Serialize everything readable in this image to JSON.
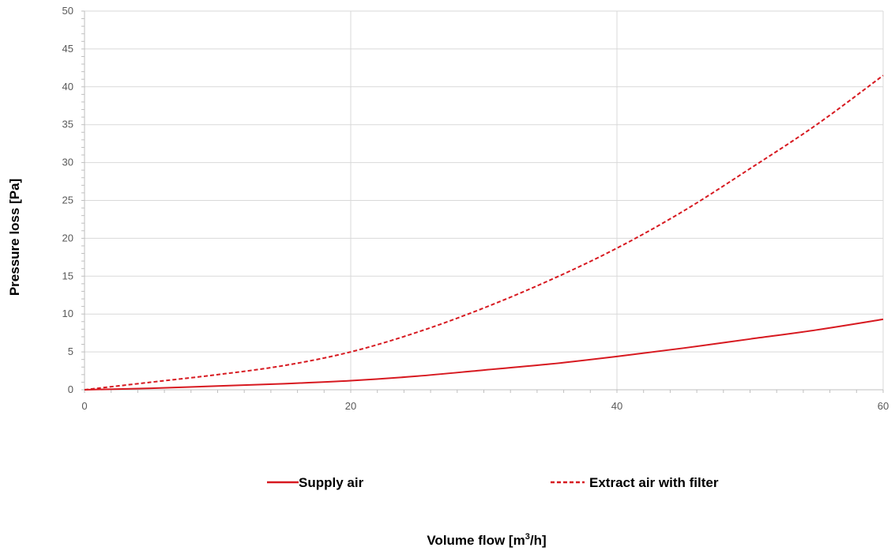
{
  "chart_data": {
    "type": "line",
    "title": "",
    "xlabel": "Volume flow [m",
    "xlabel_sup": "3",
    "xlabel_suffix": "/h]",
    "ylabel": "Pressure loss [Pa]",
    "xlim": [
      0,
      60
    ],
    "ylim": [
      0,
      50
    ],
    "x_ticks": [
      "0",
      "20",
      "40",
      "60"
    ],
    "y_ticks": [
      "0",
      "5",
      "10",
      "15",
      "20",
      "25",
      "30",
      "35",
      "40",
      "45",
      "50"
    ],
    "grid": true,
    "legend_position": "bottom",
    "series": [
      {
        "name": "Supply air",
        "style": "solid",
        "color": "#d71920",
        "x": [
          0,
          5,
          10,
          15,
          20,
          25,
          30,
          35,
          40,
          45,
          50,
          55,
          60
        ],
        "y": [
          0,
          0.2,
          0.5,
          0.8,
          1.2,
          1.8,
          2.6,
          3.4,
          4.4,
          5.5,
          6.7,
          7.9,
          9.3
        ]
      },
      {
        "name": "Extract air with filter",
        "style": "dashed",
        "color": "#d71920",
        "x": [
          0,
          5,
          10,
          15,
          20,
          25,
          30,
          35,
          40,
          45,
          50,
          55,
          60
        ],
        "y": [
          0,
          1.0,
          2.0,
          3.2,
          5.0,
          7.6,
          10.8,
          14.5,
          18.7,
          23.6,
          29.2,
          35.0,
          41.5
        ]
      }
    ]
  }
}
